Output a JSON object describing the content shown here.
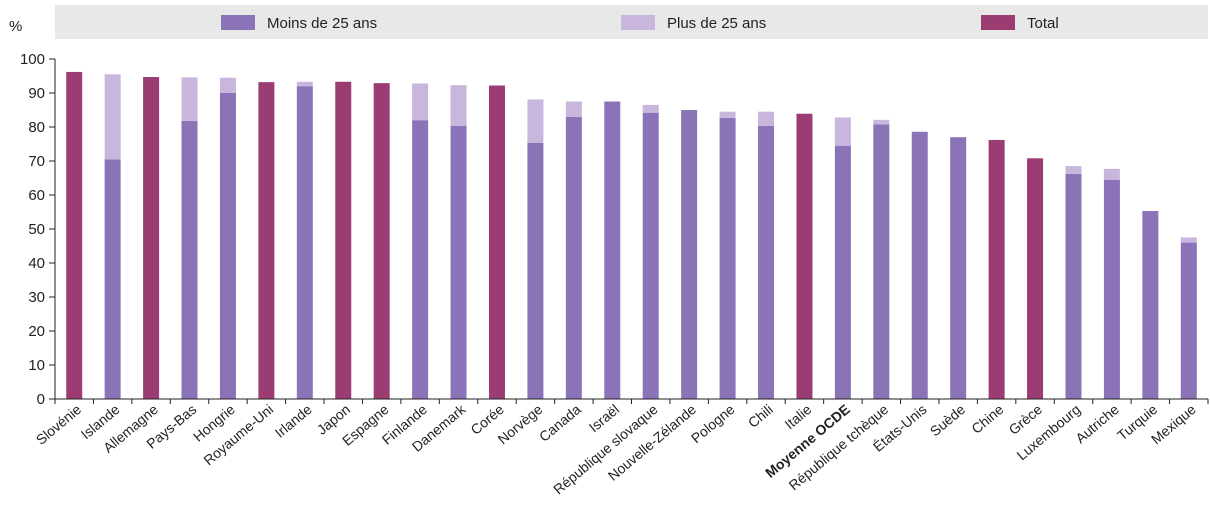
{
  "chart_data": {
    "type": "bar",
    "stacked": true,
    "ylabel": "%",
    "ylim": [
      0,
      100
    ],
    "yticks": [
      0,
      10,
      20,
      30,
      40,
      50,
      60,
      70,
      80,
      90,
      100
    ],
    "grid": false,
    "legend_position": "top",
    "categories": [
      "Slovénie",
      "Islande",
      "Allemagne",
      "Pays-Bas",
      "Hongrie",
      "Royaume-Uni",
      "Irlande",
      "Japon",
      "Espagne",
      "Finlande",
      "Danemark",
      "Corée",
      "Norvège",
      "Canada",
      "Israël",
      "République slovaque",
      "Nouvelle-Zélande",
      "Pologne",
      "Chili",
      "Italie",
      "Moyenne OCDE",
      "République tchèque",
      "États-Unis",
      "Suède",
      "Chine",
      "Grèce",
      "Luxembourg",
      "Autriche",
      "Turquie",
      "Mexique"
    ],
    "highlight_category": "Moyenne OCDE",
    "series": [
      {
        "name": "Moins de 25 ans",
        "color": "#8b73b8",
        "values": [
          null,
          70.5,
          null,
          81.8,
          90,
          null,
          92,
          null,
          null,
          82,
          80.3,
          null,
          75.3,
          83,
          87.5,
          84.2,
          85,
          82.7,
          80.3,
          null,
          74.5,
          80.8,
          78.6,
          77,
          null,
          null,
          66.2,
          64.5,
          55.3,
          46
        ]
      },
      {
        "name": "Plus de 25 ans",
        "color": "#c9b6dd",
        "values": [
          null,
          25,
          null,
          12.8,
          4.5,
          null,
          1.3,
          null,
          null,
          10.8,
          12,
          null,
          12.8,
          4.5,
          null,
          2.3,
          null,
          1.8,
          4.2,
          null,
          8.3,
          1.3,
          null,
          null,
          null,
          null,
          2.3,
          3.2,
          null,
          1.5
        ]
      },
      {
        "name": "Total",
        "color": "#9b3d72",
        "values": [
          96.2,
          null,
          94.7,
          null,
          null,
          93.2,
          null,
          93.3,
          92.9,
          null,
          null,
          92.2,
          null,
          null,
          null,
          null,
          null,
          null,
          null,
          83.9,
          null,
          null,
          null,
          null,
          76.2,
          70.8,
          null,
          null,
          null,
          null
        ]
      }
    ]
  }
}
